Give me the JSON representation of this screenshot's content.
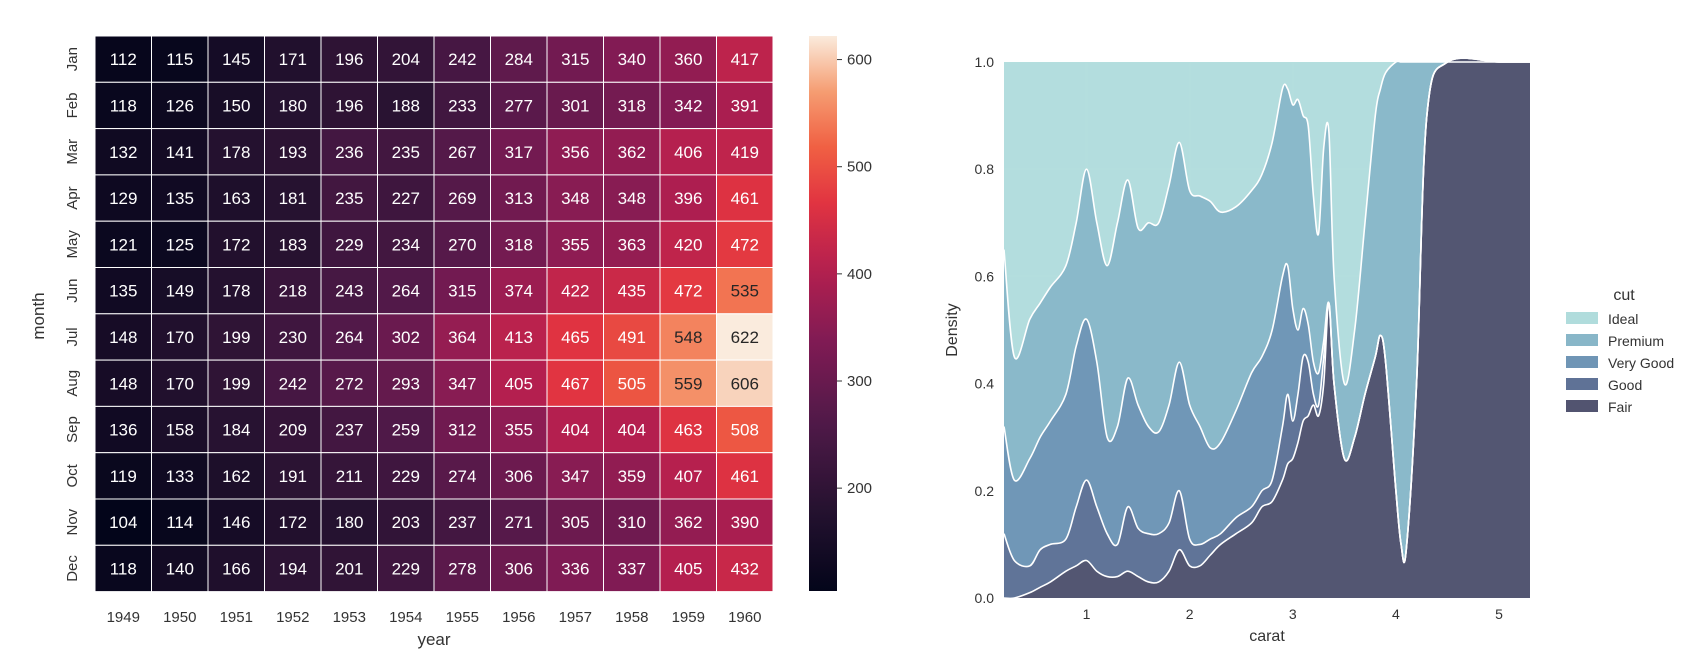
{
  "chart_data": [
    {
      "type": "heatmap",
      "title": "",
      "xlabel": "year",
      "ylabel": "month",
      "x": [
        "1949",
        "1950",
        "1951",
        "1952",
        "1953",
        "1954",
        "1955",
        "1956",
        "1957",
        "1958",
        "1959",
        "1960"
      ],
      "y": [
        "Jan",
        "Feb",
        "Mar",
        "Apr",
        "May",
        "Jun",
        "Jul",
        "Aug",
        "Sep",
        "Oct",
        "Nov",
        "Dec"
      ],
      "values": [
        [
          112,
          115,
          145,
          171,
          196,
          204,
          242,
          284,
          315,
          340,
          360,
          417
        ],
        [
          118,
          126,
          150,
          180,
          196,
          188,
          233,
          277,
          301,
          318,
          342,
          391
        ],
        [
          132,
          141,
          178,
          193,
          236,
          235,
          267,
          317,
          356,
          362,
          406,
          419
        ],
        [
          129,
          135,
          163,
          181,
          235,
          227,
          269,
          313,
          348,
          348,
          396,
          461
        ],
        [
          121,
          125,
          172,
          183,
          229,
          234,
          270,
          318,
          355,
          363,
          420,
          472
        ],
        [
          135,
          149,
          178,
          218,
          243,
          264,
          315,
          374,
          422,
          435,
          472,
          535
        ],
        [
          148,
          170,
          199,
          230,
          264,
          302,
          364,
          413,
          465,
          491,
          548,
          622
        ],
        [
          148,
          170,
          199,
          242,
          272,
          293,
          347,
          405,
          467,
          505,
          559,
          606
        ],
        [
          136,
          158,
          184,
          209,
          237,
          259,
          312,
          355,
          404,
          404,
          463,
          508
        ],
        [
          119,
          133,
          162,
          191,
          211,
          229,
          274,
          306,
          347,
          359,
          407,
          461
        ],
        [
          104,
          114,
          146,
          172,
          180,
          203,
          237,
          271,
          305,
          310,
          362,
          390
        ],
        [
          118,
          140,
          166,
          194,
          201,
          229,
          278,
          306,
          336,
          337,
          405,
          432
        ]
      ],
      "annotations": "cell values shown",
      "colormap": "rocket",
      "colorbar": {
        "ticks": [
          200,
          300,
          400,
          500,
          600
        ],
        "range": [
          104,
          622
        ]
      }
    },
    {
      "type": "area",
      "title": "",
      "xlabel": "carat",
      "ylabel": "Density",
      "xlim": [
        0.2,
        5.3
      ],
      "ylim": [
        0,
        1.0
      ],
      "xticks": [
        1,
        2,
        3,
        4,
        5
      ],
      "yticks": [
        0.0,
        0.2,
        0.4,
        0.6,
        0.8,
        1.0
      ],
      "grid": true,
      "stacked": "fill",
      "legend": {
        "title": "cut",
        "placement": "right"
      },
      "x": [
        0.2,
        0.3,
        0.45,
        0.55,
        0.65,
        0.8,
        0.9,
        1.0,
        1.1,
        1.2,
        1.3,
        1.4,
        1.5,
        1.6,
        1.7,
        1.8,
        1.9,
        2.0,
        2.1,
        2.2,
        2.3,
        2.45,
        2.6,
        2.7,
        2.8,
        2.9,
        2.95,
        3.0,
        3.05,
        3.1,
        3.15,
        3.2,
        3.25,
        3.3,
        3.35,
        3.4,
        3.5,
        3.6,
        3.7,
        3.8,
        3.85,
        3.9,
        4.0,
        4.05,
        4.1,
        4.2,
        4.3,
        4.5,
        5.0,
        5.3
      ],
      "series": [
        {
          "name": "Fair",
          "color": "#525470",
          "values": [
            0.0,
            0.0,
            0.01,
            0.02,
            0.03,
            0.05,
            0.06,
            0.07,
            0.05,
            0.04,
            0.04,
            0.05,
            0.04,
            0.03,
            0.03,
            0.05,
            0.09,
            0.06,
            0.06,
            0.08,
            0.1,
            0.12,
            0.14,
            0.17,
            0.18,
            0.22,
            0.25,
            0.26,
            0.29,
            0.33,
            0.34,
            0.36,
            0.34,
            0.4,
            0.55,
            0.4,
            0.26,
            0.3,
            0.38,
            0.45,
            0.49,
            0.44,
            0.2,
            0.1,
            0.09,
            0.4,
            0.9,
            1.0,
            1.0,
            1.0
          ]
        },
        {
          "name": "Good",
          "color": "#5f7296",
          "values": [
            0.12,
            0.07,
            0.06,
            0.09,
            0.1,
            0.11,
            0.17,
            0.22,
            0.17,
            0.12,
            0.1,
            0.17,
            0.13,
            0.12,
            0.12,
            0.14,
            0.2,
            0.11,
            0.1,
            0.11,
            0.12,
            0.15,
            0.17,
            0.2,
            0.22,
            0.32,
            0.38,
            0.33,
            0.38,
            0.45,
            0.44,
            0.38,
            0.36,
            0.45,
            0.55,
            0.4,
            0.26,
            0.3,
            0.38,
            0.45,
            0.49,
            0.44,
            0.2,
            0.1,
            0.09,
            0.4,
            0.9,
            1.0,
            1.0,
            1.0
          ]
        },
        {
          "name": "Very Good",
          "color": "#6f95b5",
          "values": [
            0.32,
            0.22,
            0.26,
            0.3,
            0.33,
            0.38,
            0.47,
            0.52,
            0.44,
            0.3,
            0.32,
            0.41,
            0.36,
            0.32,
            0.31,
            0.36,
            0.44,
            0.36,
            0.32,
            0.28,
            0.29,
            0.35,
            0.42,
            0.45,
            0.5,
            0.6,
            0.62,
            0.54,
            0.5,
            0.54,
            0.51,
            0.44,
            0.42,
            0.48,
            0.55,
            0.4,
            0.26,
            0.3,
            0.38,
            0.45,
            0.49,
            0.44,
            0.2,
            0.1,
            0.09,
            0.4,
            0.9,
            1.0,
            1.0,
            1.0
          ]
        },
        {
          "name": "Premium",
          "color": "#88b6c8",
          "values": [
            0.65,
            0.45,
            0.52,
            0.55,
            0.58,
            0.62,
            0.7,
            0.8,
            0.7,
            0.62,
            0.7,
            0.78,
            0.69,
            0.7,
            0.7,
            0.77,
            0.85,
            0.76,
            0.75,
            0.74,
            0.72,
            0.73,
            0.76,
            0.79,
            0.85,
            0.95,
            0.95,
            0.92,
            0.93,
            0.9,
            0.88,
            0.75,
            0.68,
            0.84,
            0.87,
            0.6,
            0.4,
            0.5,
            0.7,
            0.9,
            0.95,
            0.98,
            1.0,
            1.0,
            1.0,
            1.0,
            1.0,
            1.0,
            1.0,
            1.0
          ]
        },
        {
          "name": "Ideal",
          "color": "#b0dcdc",
          "values": [
            1.0,
            1.0,
            1.0,
            1.0,
            1.0,
            1.0,
            1.0,
            1.0,
            1.0,
            1.0,
            1.0,
            1.0,
            1.0,
            1.0,
            1.0,
            1.0,
            1.0,
            1.0,
            1.0,
            1.0,
            1.0,
            1.0,
            1.0,
            1.0,
            1.0,
            1.0,
            1.0,
            1.0,
            1.0,
            1.0,
            1.0,
            1.0,
            1.0,
            1.0,
            1.0,
            1.0,
            1.0,
            1.0,
            1.0,
            1.0,
            1.0,
            1.0,
            1.0,
            1.0,
            1.0,
            1.0,
            1.0,
            1.0,
            1.0,
            1.0
          ]
        }
      ]
    }
  ]
}
